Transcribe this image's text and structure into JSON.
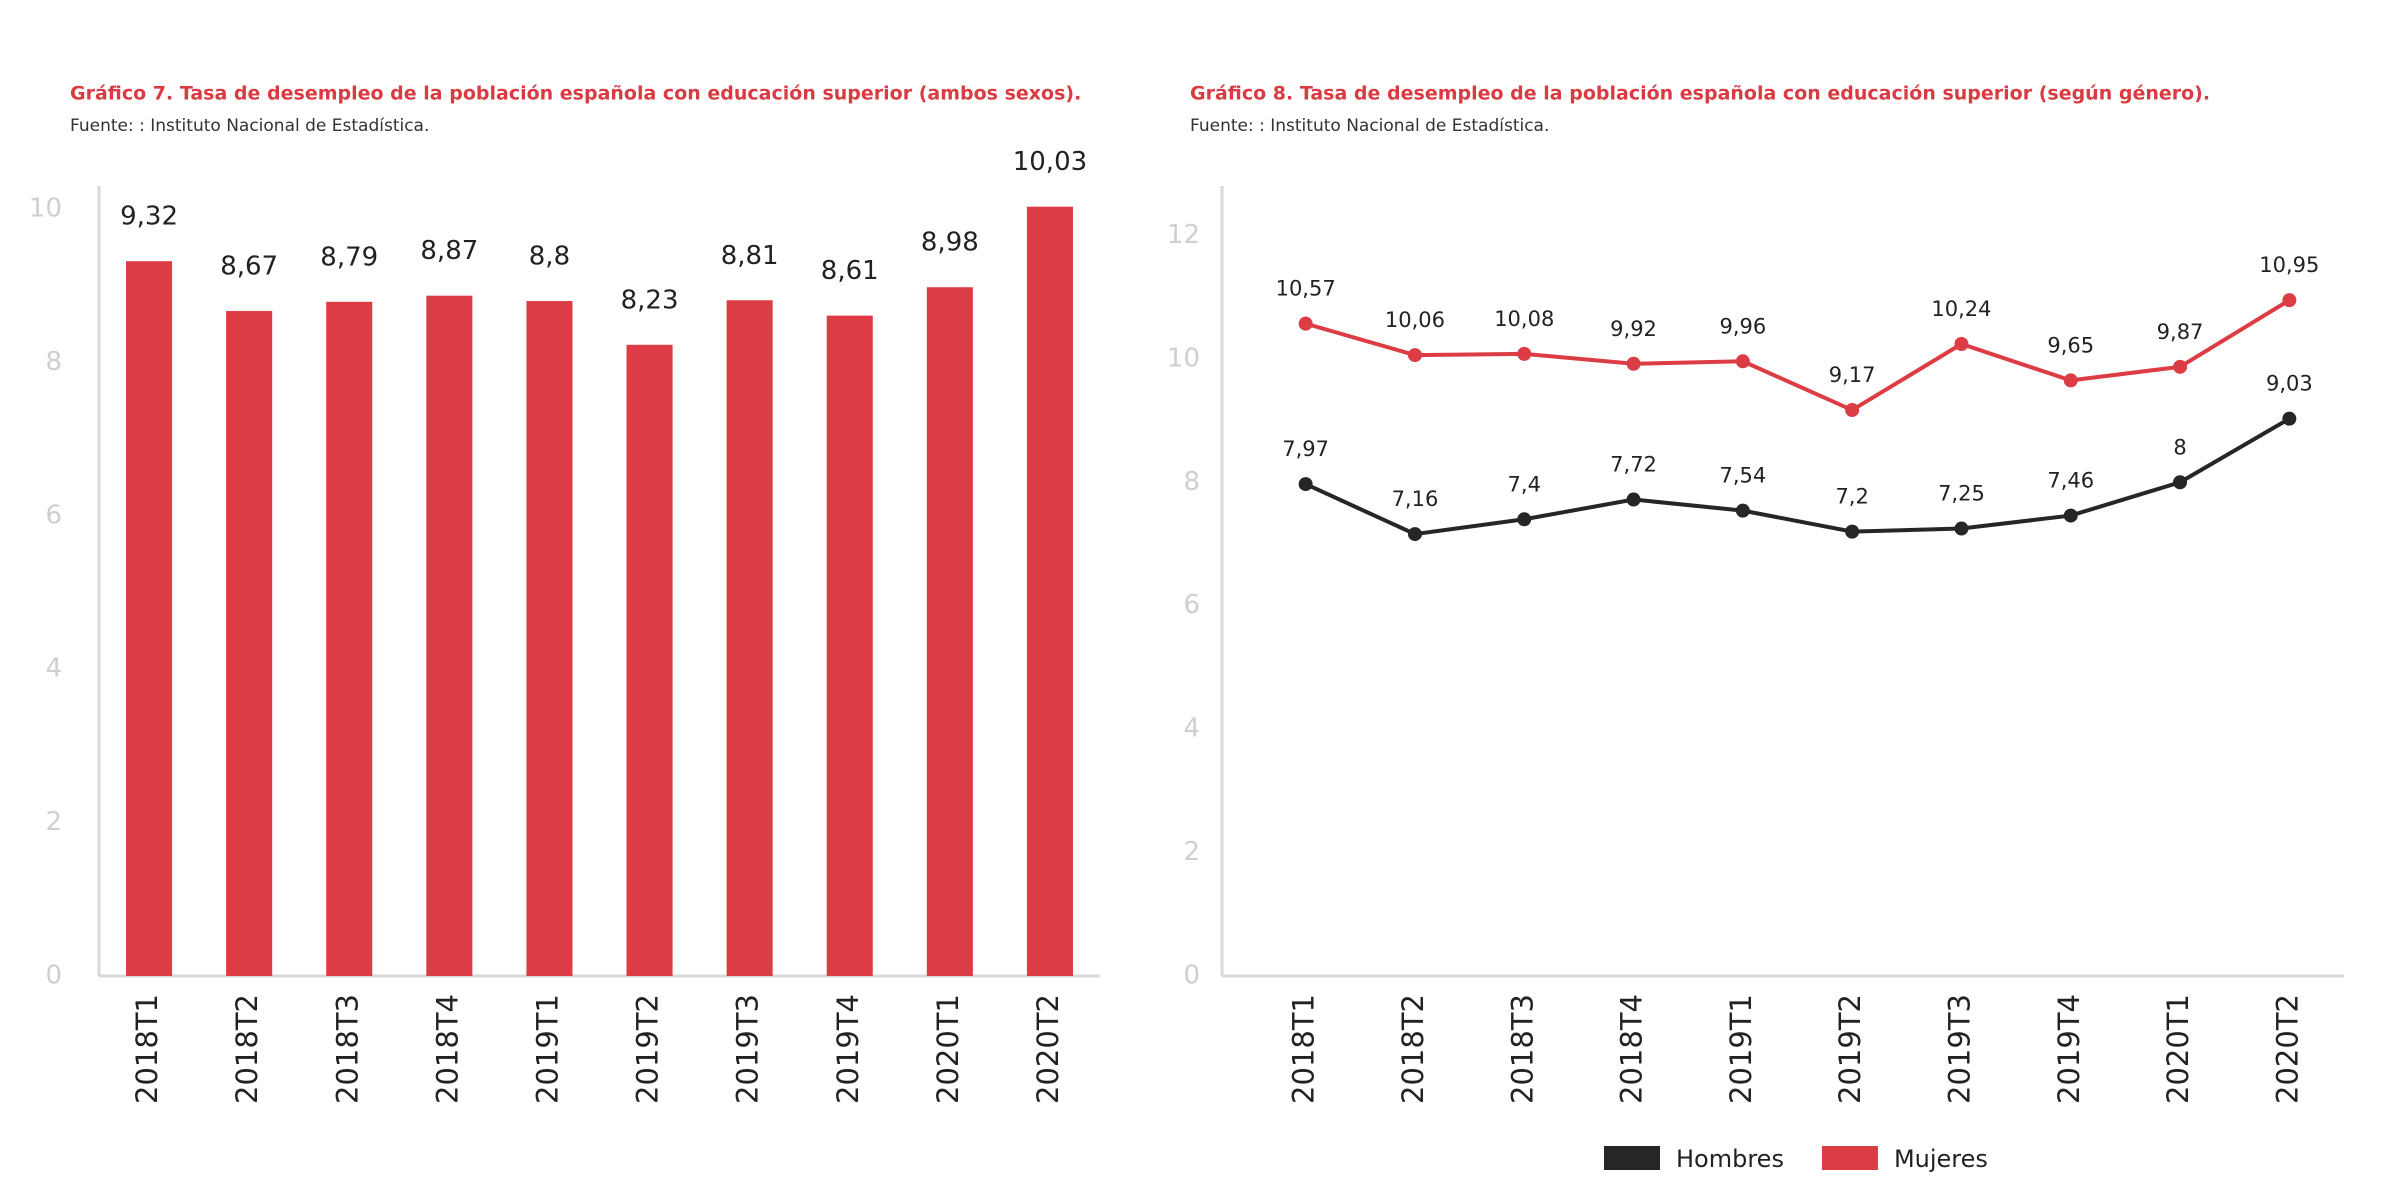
{
  "chart_data": [
    {
      "type": "bar",
      "title": "Gráfico 7. Tasa de desempleo de la población española con educación superior (ambos sexos).",
      "subtitle": "Fuente: : Instituto Nacional de Estadística.",
      "categories": [
        "2018T1",
        "2018T2",
        "2018T3",
        "2018T4",
        "2019T1",
        "2019T2",
        "2019T3",
        "2019T4",
        "2020T1",
        "2020T2"
      ],
      "values": [
        9.32,
        8.67,
        8.79,
        8.87,
        8.8,
        8.23,
        8.81,
        8.61,
        8.98,
        10.03
      ],
      "value_labels": [
        "9,32",
        "8,67",
        "8,79",
        "8,87",
        "8,8",
        "8,23",
        "8,81",
        "8,61",
        "8,98",
        "10,03"
      ],
      "color": "#dc3c44",
      "ylim": [
        0,
        10.3
      ],
      "yticks": [
        0,
        2,
        4,
        6,
        8,
        10
      ]
    },
    {
      "type": "line",
      "title": "Gráfico 8. Tasa de desempleo de la población española con educación superior (según género).",
      "subtitle": "Fuente: : Instituto Nacional de Estadística.",
      "categories": [
        "2018T1",
        "2018T2",
        "2018T3",
        "2018T4",
        "2019T1",
        "2019T2",
        "2019T3",
        "2019T4",
        "2020T1",
        "2020T2"
      ],
      "series": [
        {
          "name": "Hombres",
          "color": "#262626",
          "values": [
            7.97,
            7.16,
            7.4,
            7.72,
            7.54,
            7.2,
            7.25,
            7.46,
            8,
            9.03
          ],
          "value_labels": [
            "7,97",
            "7,16",
            "7,4",
            "7,72",
            "7,54",
            "7,2",
            "7,25",
            "7,46",
            "8",
            "9,03"
          ]
        },
        {
          "name": "Mujeres",
          "color": "#dc3c44",
          "values": [
            10.57,
            10.06,
            10.08,
            9.92,
            9.96,
            9.17,
            10.24,
            9.65,
            9.87,
            10.95
          ],
          "value_labels": [
            "10,57",
            "10,06",
            "10,08",
            "9,92",
            "9,96",
            "9,17",
            "10,24",
            "9,65",
            "9,87",
            "10,95"
          ]
        }
      ],
      "ylim": [
        0,
        12.8
      ],
      "yticks": [
        0,
        2,
        4,
        6,
        8,
        10,
        12
      ]
    }
  ]
}
